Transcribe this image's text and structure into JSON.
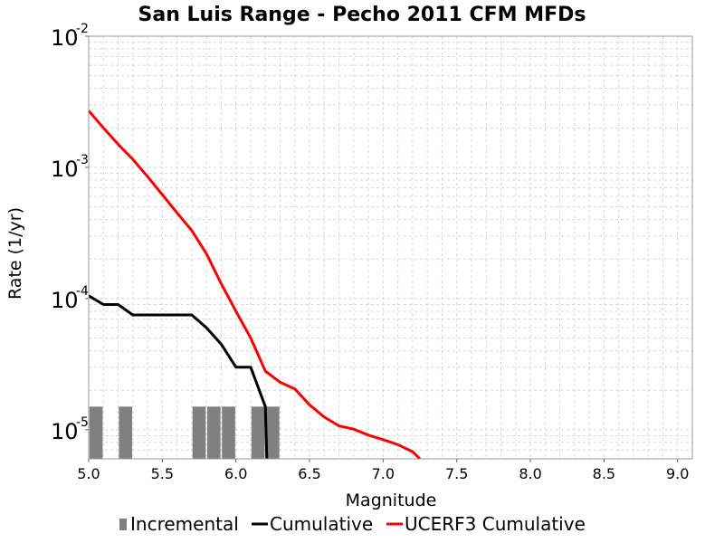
{
  "chart_data": {
    "type": "line",
    "title": "San Luis Range - Pecho 2011 CFM MFDs",
    "xlabel": "Magnitude",
    "ylabel": "Rate (1/yr)",
    "xlim": [
      5.0,
      9.1
    ],
    "ylim": [
      6e-06,
      0.01
    ],
    "yscale": "log",
    "grid": true,
    "legend_position": "bottom",
    "x_ticks": [
      "5.0",
      "5.5",
      "6.0",
      "6.5",
      "7.0",
      "7.5",
      "8.0",
      "8.5",
      "9.0"
    ],
    "y_ticks": [
      {
        "base": "10",
        "exp": "-2",
        "value": 0.01
      },
      {
        "base": "10",
        "exp": "-3",
        "value": 0.001
      },
      {
        "base": "10",
        "exp": "-4",
        "value": 0.0001
      },
      {
        "base": "10",
        "exp": "-5",
        "value": 1e-05
      }
    ],
    "series": [
      {
        "name": "Incremental",
        "type": "bar",
        "color": "#808080",
        "bar_width": 0.09,
        "x": [
          5.05,
          5.25,
          5.75,
          5.85,
          5.95,
          6.15,
          6.25
        ],
        "values": [
          1.5e-05,
          1.5e-05,
          1.5e-05,
          1.5e-05,
          1.5e-05,
          1.5e-05,
          1.5e-05
        ]
      },
      {
        "name": "Cumulative",
        "type": "line",
        "color": "#000000",
        "x": [
          5.0,
          5.1,
          5.2,
          5.3,
          5.4,
          5.5,
          5.6,
          5.7,
          5.8,
          5.9,
          6.0,
          6.1,
          6.2,
          6.21
        ],
        "values": [
          0.000105,
          9e-05,
          9e-05,
          7.5e-05,
          7.5e-05,
          7.5e-05,
          7.5e-05,
          7.5e-05,
          6e-05,
          4.5e-05,
          3e-05,
          3e-05,
          1.5e-05,
          6e-06
        ]
      },
      {
        "name": "UCERF3 Cumulative",
        "type": "line",
        "color": "#ff0000",
        "x": [
          5.0,
          5.1,
          5.2,
          5.3,
          5.4,
          5.5,
          5.6,
          5.7,
          5.8,
          5.9,
          6.0,
          6.1,
          6.2,
          6.3,
          6.4,
          6.5,
          6.6,
          6.7,
          6.8,
          6.9,
          7.0,
          7.1,
          7.2,
          7.25
        ],
        "values": [
          0.0027,
          0.002,
          0.0015,
          0.00115,
          0.00085,
          0.00062,
          0.00045,
          0.00033,
          0.00022,
          0.00013,
          8e-05,
          5e-05,
          2.8e-05,
          2.3e-05,
          2.05e-05,
          1.55e-05,
          1.25e-05,
          1.07e-05,
          1.01e-05,
          9.1e-06,
          8.4e-06,
          7.7e-06,
          6.8e-06,
          6e-06
        ]
      }
    ],
    "legend": [
      "Incremental",
      "Cumulative",
      "UCERF3 Cumulative"
    ]
  }
}
